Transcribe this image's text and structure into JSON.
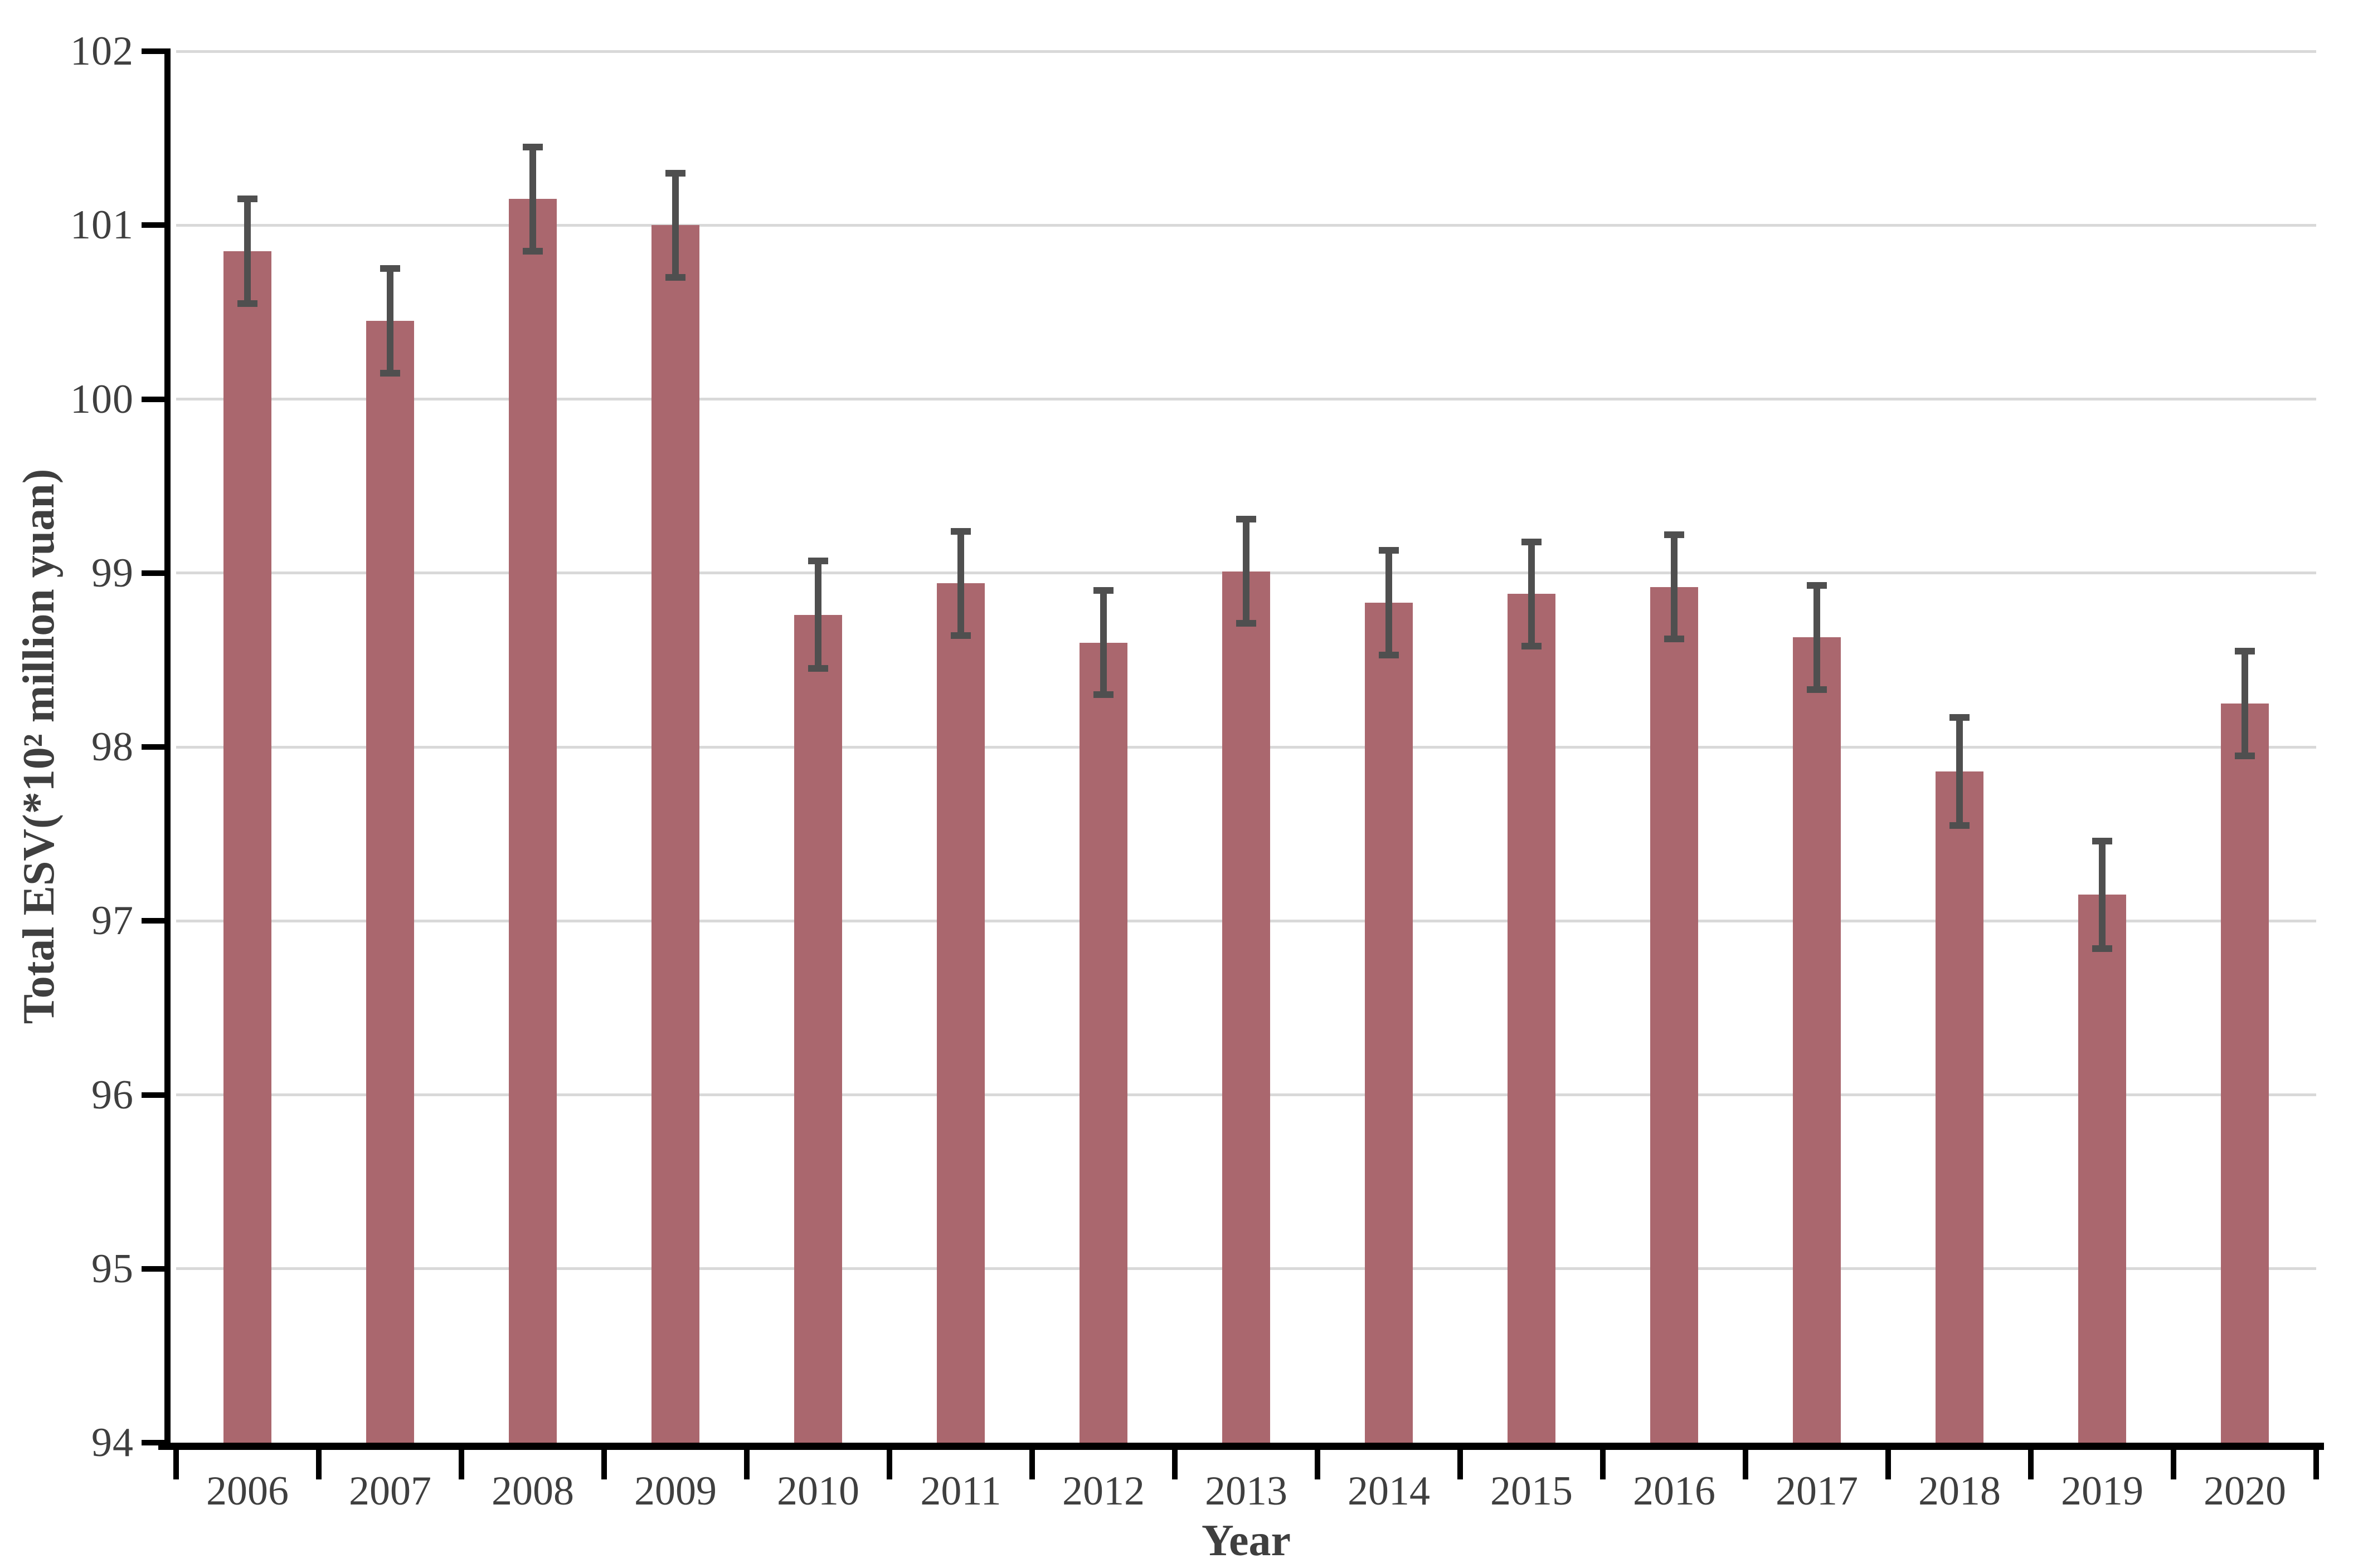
{
  "chart_data": {
    "type": "bar",
    "title": "",
    "xlabel": "Year",
    "ylabel": "Total ESV(*10² million yuan)",
    "categories": [
      "2006",
      "2007",
      "2008",
      "2009",
      "2010",
      "2011",
      "2012",
      "2013",
      "2014",
      "2015",
      "2016",
      "2017",
      "2018",
      "2019",
      "2020"
    ],
    "values": [
      100.85,
      100.45,
      101.15,
      101.0,
      98.76,
      98.94,
      98.6,
      99.01,
      98.83,
      98.88,
      98.92,
      98.63,
      97.86,
      97.15,
      98.25
    ],
    "errors": [
      0.3,
      0.3,
      0.3,
      0.3,
      0.31,
      0.3,
      0.3,
      0.3,
      0.3,
      0.3,
      0.3,
      0.3,
      0.31,
      0.31,
      0.3
    ],
    "ylim": [
      94,
      102
    ],
    "yticks": [
      94,
      95,
      96,
      97,
      98,
      99,
      100,
      101,
      102
    ],
    "grid": "horizontal-major",
    "legend": "none",
    "colors": {
      "bar": "#aa676e",
      "error_bar": "#4f4f4f",
      "gridline": "#d9d9d9",
      "axis": "#000000",
      "text": "#3f3f3f",
      "background": "#ffffff"
    }
  }
}
